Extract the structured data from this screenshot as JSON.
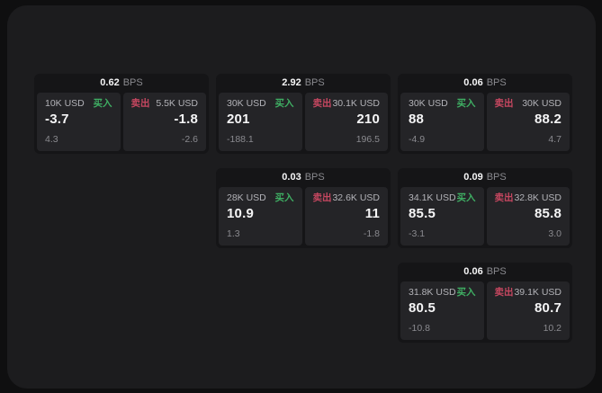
{
  "labels": {
    "bps_unit": "BPS",
    "buy": "买入",
    "sell": "卖出"
  },
  "colors": {
    "background": "#0f0f10",
    "panel": "#1c1c1e",
    "card": "#151517",
    "tile": "#242427",
    "buy_green": "#3fae63",
    "sell_red": "#c64760",
    "text_primary": "#f5f5f6",
    "text_muted": "#8a8a8f"
  },
  "cards": [
    {
      "bps": "0.62",
      "buy": {
        "amount": "10K USD",
        "price": "-3.7",
        "change": "4.3"
      },
      "sell": {
        "amount": "5.5K USD",
        "price": "-1.8",
        "change": "-2.6"
      }
    },
    {
      "bps": "2.92",
      "buy": {
        "amount": "30K USD",
        "price": "201",
        "change": "-188.1"
      },
      "sell": {
        "amount": "30.1K USD",
        "price": "210",
        "change": "196.5"
      }
    },
    {
      "bps": "0.06",
      "buy": {
        "amount": "30K USD",
        "price": "88",
        "change": "-4.9"
      },
      "sell": {
        "amount": "30K USD",
        "price": "88.2",
        "change": "4.7"
      }
    },
    {
      "bps": "0.03",
      "buy": {
        "amount": "28K USD",
        "price": "10.9",
        "change": "1.3"
      },
      "sell": {
        "amount": "32.6K USD",
        "price": "11",
        "change": "-1.8"
      }
    },
    {
      "bps": "0.09",
      "buy": {
        "amount": "34.1K USD",
        "price": "85.5",
        "change": "-3.1"
      },
      "sell": {
        "amount": "32.8K USD",
        "price": "85.8",
        "change": "3.0"
      }
    },
    {
      "bps": "0.06",
      "buy": {
        "amount": "31.8K USD",
        "price": "80.5",
        "change": "-10.8"
      },
      "sell": {
        "amount": "39.1K USD",
        "price": "80.7",
        "change": "10.2"
      }
    }
  ]
}
